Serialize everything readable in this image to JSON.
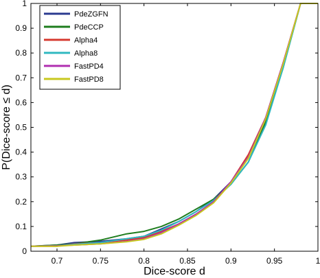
{
  "chart_data": {
    "type": "line",
    "title": "",
    "xlabel": "Dice-score d",
    "ylabel": "P(Dice-score ≤ d)",
    "xlim": [
      0.67,
      1.0
    ],
    "ylim": [
      0,
      1
    ],
    "xticks": [
      0.7,
      0.75,
      0.8,
      0.85,
      0.9,
      0.95,
      1
    ],
    "xtick_labels": [
      "0.7",
      "0.75",
      "0.8",
      "0.85",
      "0.9",
      "0.95",
      "1"
    ],
    "yticks": [
      0,
      0.1,
      0.2,
      0.3,
      0.4,
      0.5,
      0.6,
      0.7,
      0.8,
      0.9,
      1
    ],
    "ytick_labels": [
      "0",
      "0.1",
      "0.2",
      "0.3",
      "0.4",
      "0.5",
      "0.6",
      "0.7",
      "0.8",
      "0.9",
      "1"
    ],
    "grid": false,
    "legend_position": "top-left",
    "series": [
      {
        "name": "PdeZGFN",
        "color": "#2b3a8f",
        "x": [
          0.67,
          0.7,
          0.72,
          0.75,
          0.78,
          0.8,
          0.82,
          0.84,
          0.86,
          0.88,
          0.9,
          0.92,
          0.94,
          0.96,
          0.98,
          1.0
        ],
        "y": [
          0.02,
          0.025,
          0.035,
          0.04,
          0.05,
          0.06,
          0.09,
          0.12,
          0.16,
          0.21,
          0.28,
          0.38,
          0.53,
          0.75,
          1.0,
          1.0
        ]
      },
      {
        "name": "PdeCCP",
        "color": "#1e7d1e",
        "x": [
          0.67,
          0.7,
          0.72,
          0.75,
          0.78,
          0.8,
          0.82,
          0.84,
          0.86,
          0.88,
          0.9,
          0.92,
          0.94,
          0.96,
          0.98,
          1.0
        ],
        "y": [
          0.02,
          0.025,
          0.03,
          0.045,
          0.07,
          0.08,
          0.1,
          0.13,
          0.17,
          0.21,
          0.27,
          0.36,
          0.52,
          0.74,
          1.0,
          1.0
        ]
      },
      {
        "name": "Alpha4",
        "color": "#d63a2f",
        "x": [
          0.67,
          0.7,
          0.72,
          0.75,
          0.78,
          0.8,
          0.82,
          0.84,
          0.86,
          0.88,
          0.9,
          0.92,
          0.94,
          0.96,
          0.98,
          1.0
        ],
        "y": [
          0.02,
          0.02,
          0.03,
          0.035,
          0.045,
          0.055,
          0.08,
          0.11,
          0.15,
          0.2,
          0.28,
          0.39,
          0.54,
          0.76,
          1.0,
          1.0
        ]
      },
      {
        "name": "Alpha8",
        "color": "#30b8c0",
        "x": [
          0.67,
          0.7,
          0.72,
          0.75,
          0.78,
          0.8,
          0.82,
          0.84,
          0.86,
          0.88,
          0.9,
          0.92,
          0.94,
          0.96,
          0.98,
          1.0
        ],
        "y": [
          0.02,
          0.022,
          0.028,
          0.035,
          0.05,
          0.06,
          0.085,
          0.12,
          0.16,
          0.205,
          0.27,
          0.36,
          0.51,
          0.74,
          1.0,
          1.0
        ]
      },
      {
        "name": "FastPD4",
        "color": "#b02fb0",
        "x": [
          0.67,
          0.7,
          0.72,
          0.75,
          0.78,
          0.8,
          0.82,
          0.84,
          0.86,
          0.88,
          0.9,
          0.92,
          0.94,
          0.96,
          0.98,
          1.0
        ],
        "y": [
          0.02,
          0.022,
          0.025,
          0.03,
          0.04,
          0.05,
          0.075,
          0.11,
          0.15,
          0.2,
          0.28,
          0.38,
          0.54,
          0.76,
          1.0,
          1.0
        ]
      },
      {
        "name": "FastPD8",
        "color": "#c8c81e",
        "x": [
          0.67,
          0.7,
          0.72,
          0.75,
          0.78,
          0.8,
          0.82,
          0.84,
          0.86,
          0.88,
          0.9,
          0.92,
          0.94,
          0.96,
          0.98,
          1.0
        ],
        "y": [
          0.02,
          0.02,
          0.025,
          0.03,
          0.038,
          0.048,
          0.07,
          0.105,
          0.145,
          0.195,
          0.275,
          0.375,
          0.535,
          0.755,
          1.0,
          1.0
        ]
      }
    ]
  }
}
